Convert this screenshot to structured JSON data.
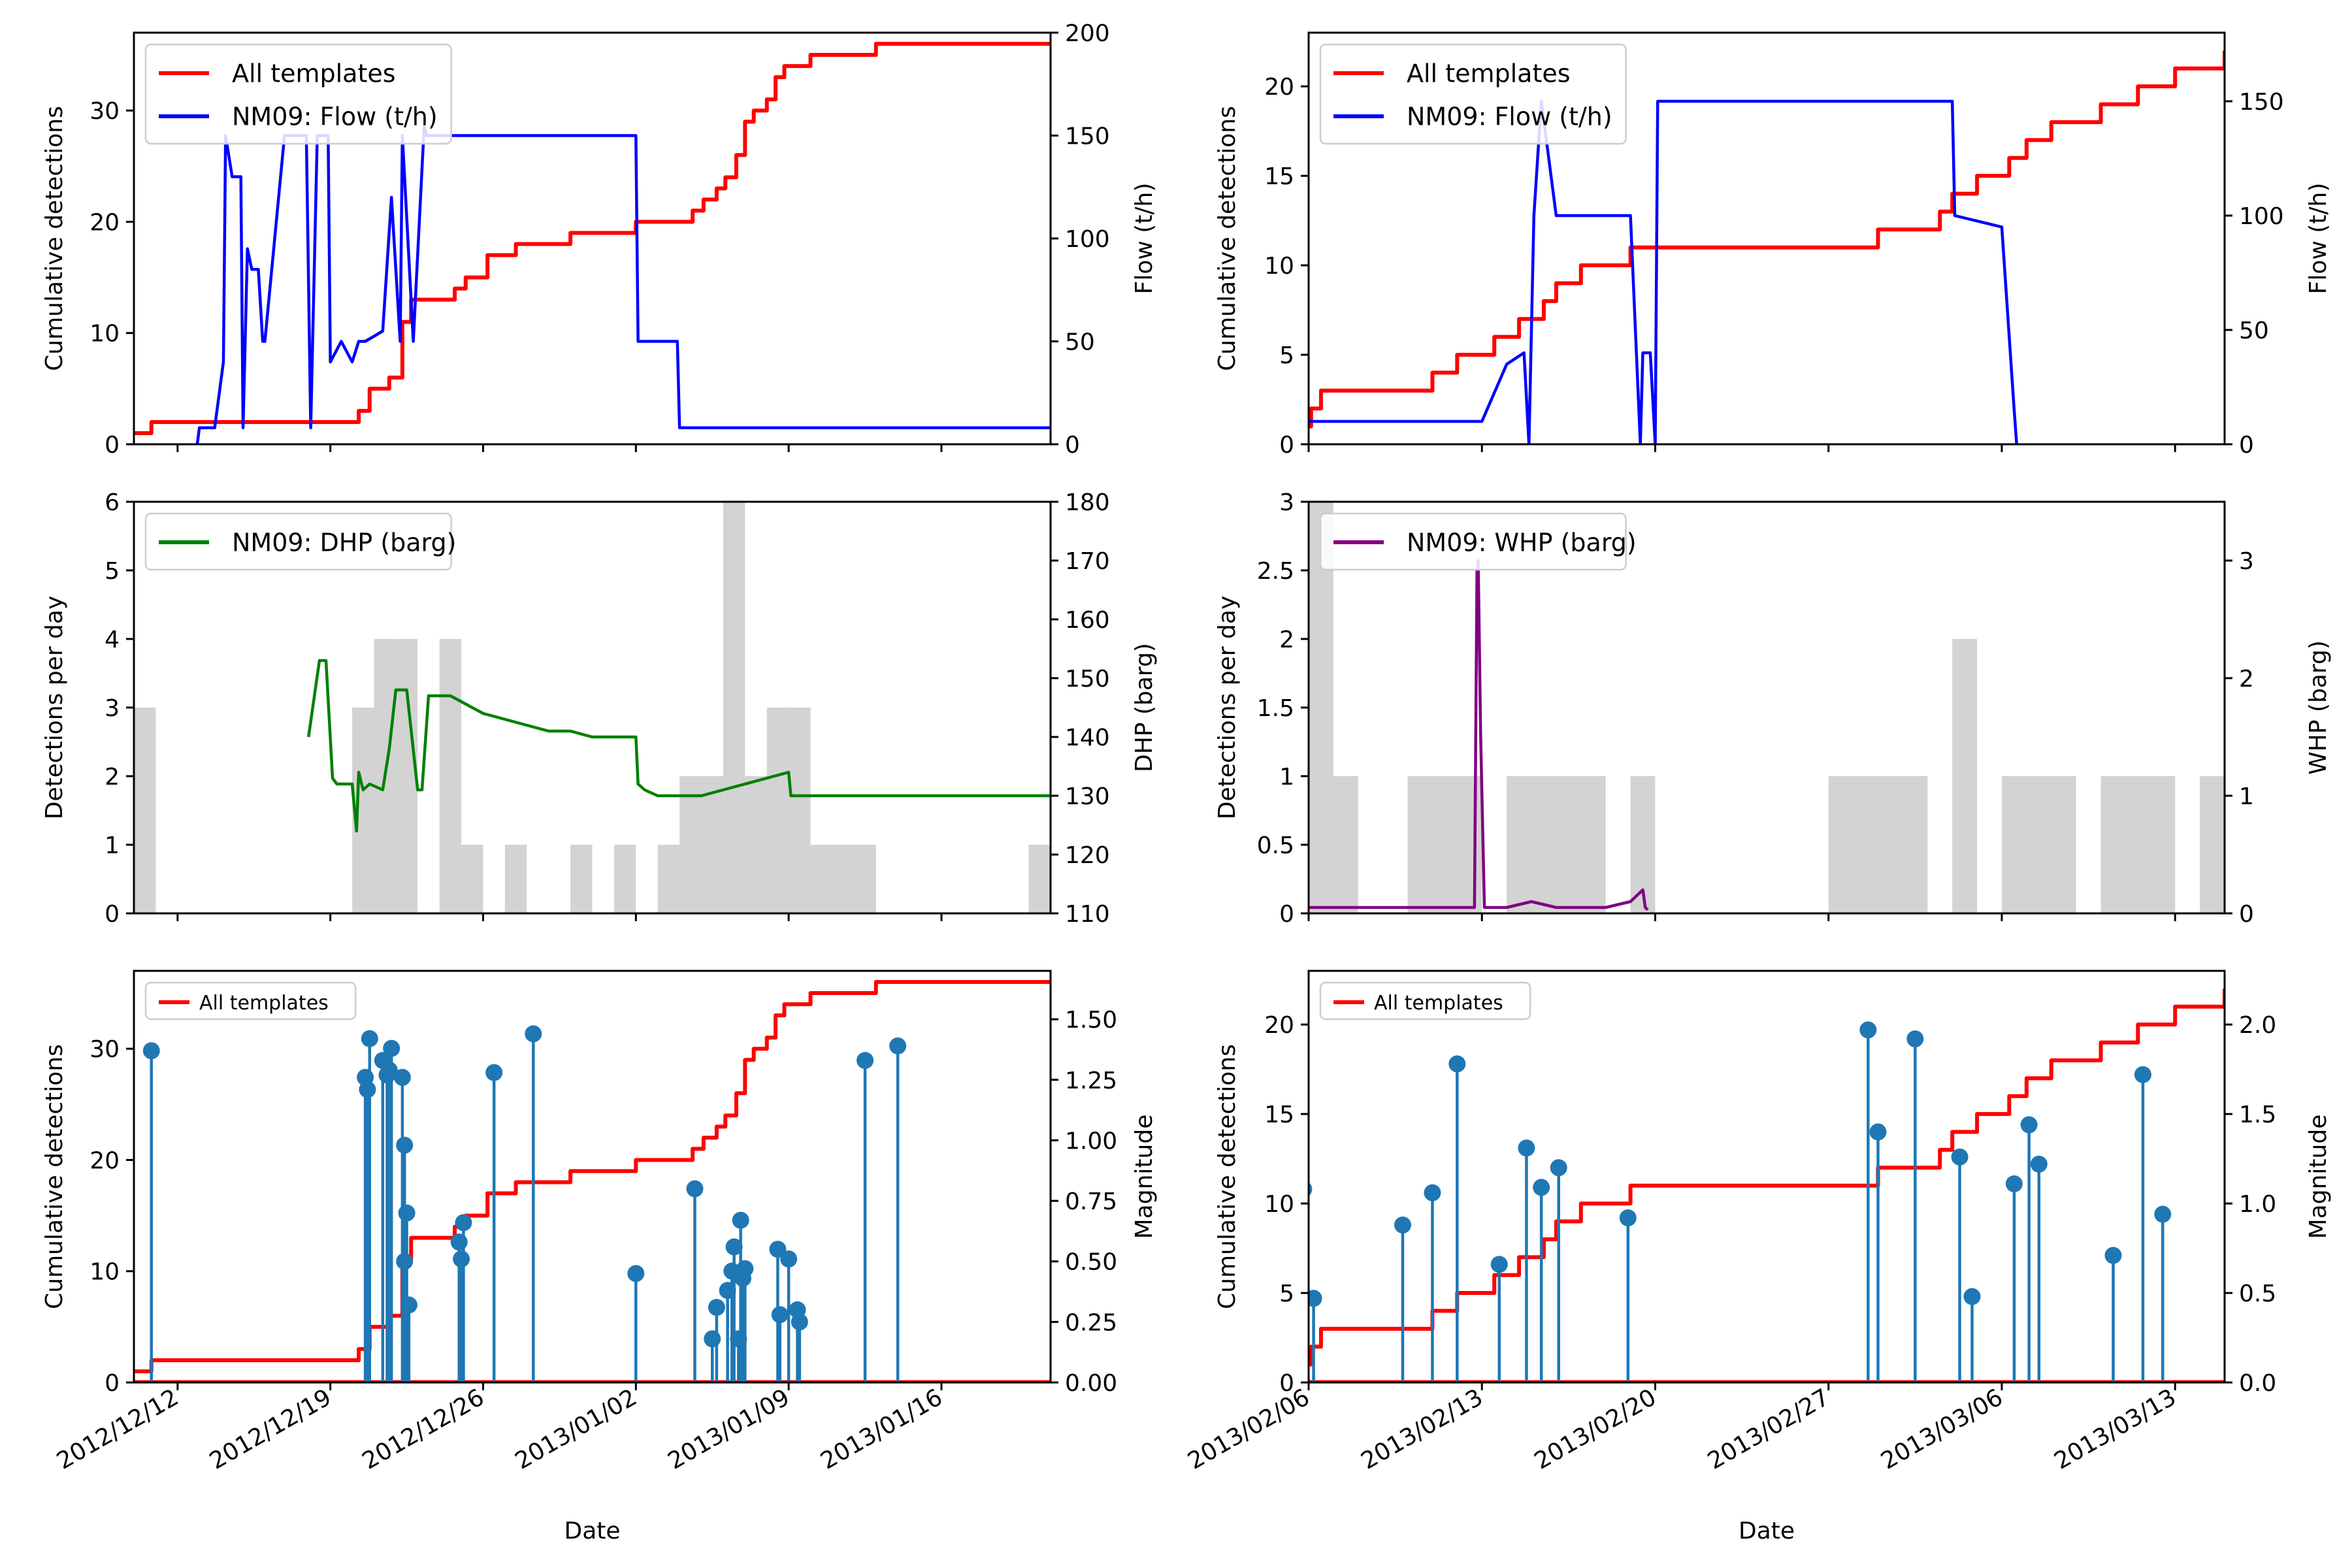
{
  "colors": {
    "cumulative": "#ff0000",
    "flow": "#0000ff",
    "dhp": "#008000",
    "whp": "#800080",
    "bars": "#d3d3d3",
    "stem": "#1f77b4"
  },
  "chart_data": [
    {
      "panel": "left-top",
      "type": "line",
      "xlim": [
        "2012/12/10",
        "2013/01/21"
      ],
      "ylabel": "Cumulative detections",
      "ylim": [
        0,
        37
      ],
      "yticks": [
        0,
        10,
        20,
        30
      ],
      "y2label": "Flow (t/h)",
      "y2lim": [
        0,
        200
      ],
      "y2ticks": [
        0,
        50,
        100,
        150,
        200
      ],
      "legend": [
        "All templates",
        "NM09: Flow (t/h)"
      ],
      "legend_position": "top-left",
      "series": [
        {
          "name": "All templates",
          "axis": "left",
          "step": true,
          "x": [
            "2012/12/10",
            "2012/12/10.8",
            "2012/12/20.3",
            "2012/12/20.8",
            "2012/12/21.7",
            "2012/12/22.3",
            "2012/12/22.7",
            "2012/12/24.7",
            "2012/12/25.2",
            "2012/12/26.2",
            "2012/12/27.5",
            "2012/12/30",
            "2013/01/02",
            "2013/01/04.6",
            "2013/01/05.1",
            "2013/01/05.7",
            "2013/01/06.1",
            "2013/01/06.6",
            "2013/01/07",
            "2013/01/07.4",
            "2013/01/08",
            "2013/01/08.4",
            "2013/01/08.8",
            "2013/01/09.2",
            "2013/01/10",
            "2013/01/11.5",
            "2013/01/13",
            "2013/01/21"
          ],
          "y": [
            1,
            2,
            3,
            5,
            6,
            11,
            13,
            14,
            15,
            17,
            18,
            19,
            20,
            21,
            22,
            23,
            24,
            26,
            29,
            30,
            31,
            33,
            34,
            34,
            35,
            35,
            36,
            36
          ]
        },
        {
          "name": "NM09: Flow (t/h)",
          "axis": "right",
          "x": [
            "2012/12/12.9",
            "2012/12/13",
            "2012/12/13.7",
            "2012/12/14.1",
            "2012/12/14.2",
            "2012/12/14.5",
            "2012/12/14.9",
            "2012/12/15",
            "2012/12/15.2",
            "2012/12/15.4",
            "2012/12/15.7",
            "2012/12/15.9",
            "2012/12/16",
            "2012/12/16.9",
            "2012/12/17",
            "2012/12/17.9",
            "2012/12/18.1",
            "2012/12/18.4",
            "2012/12/18.5",
            "2012/12/18.9",
            "2012/12/19",
            "2012/12/19.5",
            "2012/12/20",
            "2012/12/20.3",
            "2012/12/20.6",
            "2012/12/21.4",
            "2012/12/21.8",
            "2012/12/22.2",
            "2012/12/22.3",
            "2012/12/22.8",
            "2012/12/23.3",
            "2012/12/23.4",
            "2012/12/24",
            "2012/12/25",
            "2012/12/26",
            "2012/12/27",
            "2012/12/28",
            "2012/12/29",
            "2012/12/30",
            "2012/12/31",
            "2013/01/01",
            "2013/01/02",
            "2013/01/02.1",
            "2013/01/03.9",
            "2013/01/04",
            "2013/01/06",
            "2013/01/08",
            "2013/01/10",
            "2013/01/12",
            "2013/01/14",
            "2013/01/16",
            "2013/01/18",
            "2013/01/20",
            "2013/01/21"
          ],
          "y": [
            0,
            8,
            8,
            40,
            150,
            130,
            130,
            8,
            95,
            85,
            85,
            50,
            50,
            150,
            150,
            150,
            8,
            150,
            150,
            150,
            40,
            50,
            40,
            50,
            50,
            55,
            120,
            50,
            150,
            50,
            155,
            150,
            150,
            150,
            150,
            150,
            150,
            150,
            150,
            150,
            150,
            150,
            50,
            50,
            8,
            8,
            8,
            8,
            8,
            8,
            8,
            8,
            8,
            8
          ]
        }
      ]
    },
    {
      "panel": "right-top",
      "type": "line",
      "xlim": [
        "2013/02/06",
        "2013/03/15"
      ],
      "ylabel": "Cumulative detections",
      "ylim": [
        0,
        23
      ],
      "yticks": [
        0,
        5,
        10,
        15,
        20
      ],
      "y2label": "Flow (t/h)",
      "y2lim": [
        0,
        180
      ],
      "y2ticks": [
        0,
        50,
        100,
        150
      ],
      "legend": [
        "All templates",
        "NM09: Flow (t/h)"
      ],
      "legend_position": "top-left",
      "series": [
        {
          "name": "All templates",
          "axis": "left",
          "step": true,
          "x": [
            "2013/02/05.8",
            "2013/02/06.1",
            "2013/02/06.5",
            "2013/02/10",
            "2013/02/11",
            "2013/02/12",
            "2013/02/13.5",
            "2013/02/14.5",
            "2013/02/15.5",
            "2013/02/16",
            "2013/02/17",
            "2013/02/19",
            "2013/02/28.6",
            "2013/03/01",
            "2013/03/03.5",
            "2013/03/04",
            "2013/03/05",
            "2013/03/06.3",
            "2013/03/07",
            "2013/03/08",
            "2013/03/10",
            "2013/03/11.5",
            "2013/03/13",
            "2013/03/15"
          ],
          "y": [
            1,
            2,
            3,
            3,
            4,
            5,
            6,
            7,
            8,
            9,
            10,
            11,
            11,
            12,
            13,
            14,
            15,
            16,
            17,
            18,
            19,
            20,
            21,
            22
          ]
        },
        {
          "name": "NM09: Flow (t/h)",
          "axis": "right",
          "x": [
            "2013/02/06",
            "2013/02/07",
            "2013/02/08",
            "2013/02/09",
            "2013/02/10",
            "2013/02/11",
            "2013/02/12",
            "2013/02/13",
            "2013/02/14",
            "2013/02/14.7",
            "2013/02/14.9",
            "2013/02/15.1",
            "2013/02/15.4",
            "2013/02/16",
            "2013/02/16.1",
            "2013/02/17",
            "2013/02/18",
            "2013/02/19",
            "2013/02/19.4",
            "2013/02/19.5",
            "2013/02/19.8",
            "2013/02/20",
            "2013/02/20.1",
            "2013/02/22",
            "2013/02/25",
            "2013/02/28",
            "2013/03/03",
            "2013/03/04",
            "2013/03/04.1",
            "2013/03/06",
            "2013/03/06.5",
            "2013/03/06.6"
          ],
          "y": [
            10,
            10,
            10,
            10,
            10,
            10,
            10,
            10,
            35,
            40,
            0,
            100,
            150,
            100,
            100,
            100,
            100,
            100,
            0,
            40,
            40,
            0,
            150,
            150,
            150,
            150,
            150,
            150,
            100,
            95,
            15,
            0
          ]
        }
      ]
    },
    {
      "panel": "left-middle",
      "type": "bar",
      "xlim": [
        "2012/12/10",
        "2013/01/21"
      ],
      "ylabel": "Detections per day",
      "ylim": [
        0,
        6
      ],
      "yticks": [
        0,
        1,
        2,
        3,
        4,
        5,
        6
      ],
      "y2label": "DHP (barg)",
      "y2lim": [
        110,
        180
      ],
      "y2ticks": [
        110,
        120,
        130,
        140,
        150,
        160,
        170,
        180
      ],
      "legend": [
        "NM09: DHP (barg)"
      ],
      "legend_position": "top-left",
      "bars": {
        "x": [
          "2012/12/10",
          "2012/12/20",
          "2012/12/21",
          "2012/12/22",
          "2012/12/24",
          "2012/12/25",
          "2012/12/27",
          "2012/12/30",
          "2013/01/01",
          "2013/01/03",
          "2013/01/04",
          "2013/01/05",
          "2013/01/06",
          "2013/01/07",
          "2013/01/08",
          "2013/01/09",
          "2013/01/10",
          "2013/01/11",
          "2013/01/12",
          "2013/01/20"
        ],
        "values": [
          3,
          3,
          4,
          4,
          4,
          1,
          1,
          1,
          1,
          1,
          2,
          2,
          6,
          2,
          3,
          3,
          1,
          1,
          1,
          1
        ]
      },
      "series": [
        {
          "name": "NM09: DHP (barg)",
          "axis": "right",
          "x": [
            "2012/12/18",
            "2012/12/18.5",
            "2012/12/18.8",
            "2012/12/19.1",
            "2012/12/19.3",
            "2012/12/19.6",
            "2012/12/20",
            "2012/12/20.2",
            "2012/12/20.3",
            "2012/12/20.5",
            "2012/12/20.8",
            "2012/12/21.4",
            "2012/12/21.7",
            "2012/12/22",
            "2012/12/22.5",
            "2012/12/23",
            "2012/12/23.2",
            "2012/12/23.5",
            "2012/12/24",
            "2012/12/24.5",
            "2012/12/25",
            "2012/12/25.5",
            "2012/12/26",
            "2012/12/27",
            "2012/12/28",
            "2012/12/29",
            "2012/12/30",
            "2012/12/31",
            "2013/01/01",
            "2013/01/02",
            "2013/01/02.1",
            "2013/01/02.4",
            "2013/01/03",
            "2013/01/04",
            "2013/01/05",
            "2013/01/07",
            "2013/01/08",
            "2013/01/09",
            "2013/01/09.1",
            "2013/01/15",
            "2013/01/21"
          ],
          "y": [
            140,
            153,
            153,
            133,
            132,
            132,
            132,
            124,
            134,
            131,
            132,
            131,
            138,
            148,
            148,
            131,
            131,
            147,
            147,
            147,
            146,
            145,
            144,
            143,
            142,
            141,
            141,
            140,
            140,
            140,
            132,
            131,
            130,
            130,
            130,
            132,
            133,
            134,
            130,
            130,
            130
          ]
        }
      ]
    },
    {
      "panel": "right-middle",
      "type": "bar",
      "xlim": [
        "2013/02/06",
        "2013/03/15"
      ],
      "ylabel": "Detections per day",
      "ylim": [
        0,
        3.0
      ],
      "yticks": [
        0.0,
        0.5,
        1.0,
        1.5,
        2.0,
        2.5,
        3.0
      ],
      "y2label": "WHP (barg)",
      "y2lim": [
        0,
        3.5
      ],
      "y2ticks": [
        0,
        1,
        2,
        3
      ],
      "legend": [
        "NM09: WHP (barg)"
      ],
      "legend_position": "top-left",
      "bars": {
        "x": [
          "2013/02/06",
          "2013/02/07",
          "2013/02/10",
          "2013/02/11",
          "2013/02/12",
          "2013/02/14",
          "2013/02/15",
          "2013/02/16",
          "2013/02/17",
          "2013/02/19",
          "2013/02/27",
          "2013/02/28",
          "2013/03/01",
          "2013/03/02",
          "2013/03/04",
          "2013/03/06",
          "2013/03/07",
          "2013/03/08",
          "2013/03/10",
          "2013/03/11",
          "2013/03/12",
          "2013/03/14"
        ],
        "values": [
          3,
          1,
          1,
          1,
          1,
          1,
          1,
          1,
          1,
          1,
          1,
          1,
          1,
          1,
          2,
          1,
          1,
          1,
          1,
          1,
          1,
          1
        ]
      },
      "series": [
        {
          "name": "NM09: WHP (barg)",
          "axis": "right",
          "x": [
            "2013/02/06",
            "2013/02/08",
            "2013/02/10",
            "2013/02/12",
            "2013/02/12.7",
            "2013/02/12.8",
            "2013/02/12.85",
            "2013/02/12.95",
            "2013/02/13.1",
            "2013/02/14",
            "2013/02/15",
            "2013/02/16",
            "2013/02/18",
            "2013/02/19",
            "2013/02/19.5",
            "2013/02/19.6",
            "2013/02/19.7"
          ],
          "y": [
            0.05,
            0.05,
            0.05,
            0.05,
            0.05,
            2.9,
            3.0,
            1.5,
            0.05,
            0.05,
            0.1,
            0.05,
            0.05,
            0.1,
            0.2,
            0.05,
            0.03
          ]
        }
      ]
    },
    {
      "panel": "left-bottom",
      "type": "scatter",
      "xlim": [
        "2012/12/10",
        "2013/01/21"
      ],
      "xticks": [
        "2012/12/12",
        "2012/12/19",
        "2012/12/26",
        "2013/01/02",
        "2013/01/09",
        "2013/01/16"
      ],
      "xlabel": "Date",
      "ylabel": "Cumulative detections",
      "ylim": [
        0,
        37
      ],
      "yticks": [
        0,
        10,
        20,
        30
      ],
      "y2label": "Magnitude",
      "y2lim": [
        0,
        1.7
      ],
      "y2ticks": [
        "0.00",
        "0.25",
        "0.50",
        "0.75",
        "1.00",
        "1.25",
        "1.50"
      ],
      "legend": [
        "All templates"
      ],
      "legend_position": "top-left",
      "series": [
        {
          "name": "All templates",
          "axis": "left",
          "step": true,
          "same_as_panel": "left-top"
        }
      ],
      "stems": {
        "x": [
          "2012/12/10.8",
          "2012/12/20.6",
          "2012/12/20.7",
          "2012/12/20.8",
          "2012/12/21.4",
          "2012/12/21.6",
          "2012/12/21.8",
          "2012/12/21.7",
          "2012/12/22.3",
          "2012/12/22.4",
          "2012/12/22.5",
          "2012/12/22.6",
          "2012/12/22.4",
          "2012/12/24.9",
          "2012/12/25",
          "2012/12/25.1",
          "2012/12/26.5",
          "2012/12/28.3",
          "2013/01/02",
          "2013/01/04.7",
          "2013/01/05.5",
          "2013/01/05.7",
          "2013/01/06.2",
          "2013/01/06.4",
          "2013/01/06.5",
          "2013/01/06.7",
          "2013/01/06.8",
          "2013/01/06.9",
          "2013/01/07",
          "2013/01/08.5",
          "2013/01/08.6",
          "2013/01/09",
          "2013/01/09.4",
          "2013/01/09.5",
          "2013/01/12.5",
          "2013/01/14"
        ],
        "values": [
          1.37,
          1.26,
          1.21,
          1.42,
          1.33,
          1.27,
          1.38,
          1.29,
          1.26,
          0.98,
          0.7,
          0.32,
          0.5,
          0.58,
          0.51,
          0.66,
          1.28,
          1.44,
          0.45,
          0.8,
          0.18,
          0.31,
          0.38,
          0.46,
          0.56,
          0.18,
          0.67,
          0.43,
          0.47,
          0.55,
          0.28,
          0.51,
          0.3,
          0.25,
          1.33,
          1.39
        ]
      }
    },
    {
      "panel": "right-bottom",
      "type": "scatter",
      "xlim": [
        "2013/02/06",
        "2013/03/15"
      ],
      "xticks": [
        "2013/02/06",
        "2013/02/13",
        "2013/02/20",
        "2013/02/27",
        "2013/03/06",
        "2013/03/13"
      ],
      "xlabel": "Date",
      "ylabel": "Cumulative detections",
      "ylim": [
        0,
        23
      ],
      "yticks": [
        0,
        5,
        10,
        15,
        20
      ],
      "y2label": "Magnitude",
      "y2lim": [
        0,
        2.3
      ],
      "y2ticks": [
        "0.0",
        "0.5",
        "1.0",
        "1.5",
        "2.0"
      ],
      "legend": [
        "All templates"
      ],
      "legend_position": "top-left",
      "series": [
        {
          "name": "All templates",
          "axis": "left",
          "step": true,
          "same_as_panel": "right-top"
        }
      ],
      "stems": {
        "x": [
          "2013/02/05.8",
          "2013/02/06.2",
          "2013/02/09.8",
          "2013/02/11",
          "2013/02/12",
          "2013/02/13.7",
          "2013/02/14.8",
          "2013/02/15.4",
          "2013/02/16.1",
          "2013/02/18.9",
          "2013/02/28.6",
          "2013/03/01",
          "2013/03/02.5",
          "2013/03/04.3",
          "2013/03/04.8",
          "2013/03/06.5",
          "2013/03/07.1",
          "2013/03/07.5",
          "2013/03/10.5",
          "2013/03/11.7",
          "2013/03/12.5"
        ],
        "values": [
          1.08,
          0.47,
          0.88,
          1.06,
          1.78,
          0.66,
          1.31,
          1.09,
          1.2,
          0.92,
          1.97,
          1.4,
          1.92,
          1.26,
          0.48,
          1.11,
          1.44,
          1.22,
          0.71,
          1.72,
          0.94
        ]
      }
    }
  ]
}
